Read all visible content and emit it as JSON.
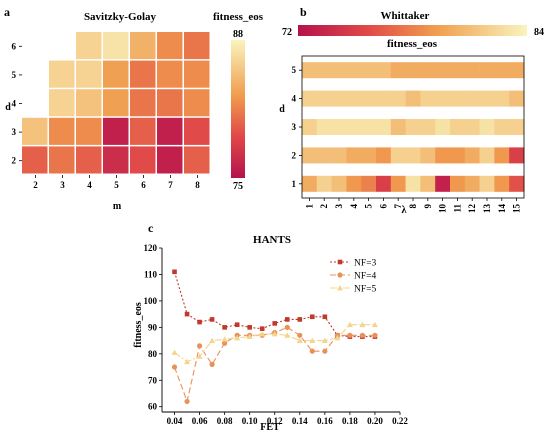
{
  "chart_data": [
    {
      "panel": "a",
      "type": "heatmap",
      "title": "Savitzky-Golay",
      "xlabel": "m",
      "ylabel": "d",
      "x": [
        "2",
        "3",
        "4",
        "5",
        "6",
        "7",
        "8"
      ],
      "y": [
        "2",
        "3",
        "4",
        "5",
        "6"
      ],
      "colorbar": {
        "label": "fitness_eos",
        "min": 75,
        "max": 88,
        "ticks": [
          "88",
          "75"
        ]
      },
      "values": [
        [
          80,
          81,
          80,
          77,
          79,
          76,
          80
        ],
        [
          85,
          82,
          82,
          76,
          80,
          76,
          79
        ],
        [
          null,
          86,
          85,
          83,
          81,
          81,
          82
        ],
        [
          null,
          86,
          86,
          83,
          81,
          82,
          82
        ],
        [
          null,
          null,
          86,
          87,
          84,
          82,
          81
        ]
      ]
    },
    {
      "panel": "b",
      "type": "heatmap",
      "title": "Whittaker",
      "xlabel": "λ",
      "ylabel": "d",
      "x": [
        "1",
        "2",
        "3",
        "4",
        "5",
        "6",
        "7",
        "8",
        "9",
        "10",
        "11",
        "12",
        "13",
        "14",
        "15"
      ],
      "y": [
        "1",
        "2",
        "3",
        "4",
        "5"
      ],
      "colorbar": {
        "label": "fitness_eos",
        "min": 72,
        "max": 84,
        "ticks": [
          "72",
          "84"
        ]
      },
      "values": [
        [
          80,
          82,
          81,
          79,
          78,
          75,
          79,
          83,
          81,
          73,
          79,
          80,
          82,
          79,
          76
        ],
        [
          81,
          81,
          81,
          80,
          80,
          79,
          82,
          82,
          81,
          79,
          79,
          80,
          82,
          79,
          75
        ],
        [
          82,
          83,
          83,
          83,
          83,
          83,
          81,
          82,
          82,
          83,
          82,
          82,
          83,
          82,
          82
        ],
        [
          82,
          82,
          82,
          82,
          82,
          82,
          82,
          81,
          82,
          82,
          82,
          82,
          82,
          82,
          81
        ],
        [
          81,
          81,
          81,
          81,
          81,
          81,
          80,
          80,
          80,
          80,
          80,
          80,
          80,
          80,
          80
        ]
      ]
    },
    {
      "panel": "c",
      "type": "line",
      "title": "HANTS",
      "xlabel": "FET",
      "ylabel": "fitness_eos",
      "xlim": [
        0.03,
        0.22
      ],
      "ylim": [
        58,
        120
      ],
      "xticks": [
        "0.04",
        "0.06",
        "0.08",
        "0.10",
        "0.12",
        "0.14",
        "0.16",
        "0.18",
        "0.20",
        "0.22"
      ],
      "yticks": [
        "60",
        "70",
        "80",
        "90",
        "100",
        "110",
        "120"
      ],
      "x": [
        0.04,
        0.05,
        0.06,
        0.07,
        0.08,
        0.09,
        0.1,
        0.11,
        0.12,
        0.13,
        0.14,
        0.15,
        0.16,
        0.17,
        0.18,
        0.19,
        0.2
      ],
      "series": [
        {
          "name": "NF=3",
          "color": "#c0392b",
          "marker": "square",
          "dash": "2,2",
          "values": [
            111,
            95,
            92,
            93,
            90,
            91,
            90,
            89.5,
            91.5,
            93,
            93,
            94,
            94,
            87,
            86.5,
            86.5,
            86.5
          ]
        },
        {
          "name": "NF=4",
          "color": "#e8925a",
          "marker": "circle",
          "dash": "6,3",
          "values": [
            75,
            62,
            83,
            76,
            84,
            87,
            87,
            87,
            88,
            90,
            87,
            81,
            81,
            87,
            87,
            87,
            87
          ]
        },
        {
          "name": "NF=5",
          "color": "#f3d58b",
          "marker": "triangle",
          "dash": "7,2,2,2",
          "values": [
            80.5,
            77,
            79,
            85,
            85.5,
            86,
            86.5,
            87.5,
            87.5,
            87,
            85,
            85,
            85,
            86,
            91,
            91,
            91
          ]
        }
      ],
      "legend": "top-right"
    }
  ],
  "labels": {
    "a": "a",
    "b": "b",
    "c": "c"
  }
}
